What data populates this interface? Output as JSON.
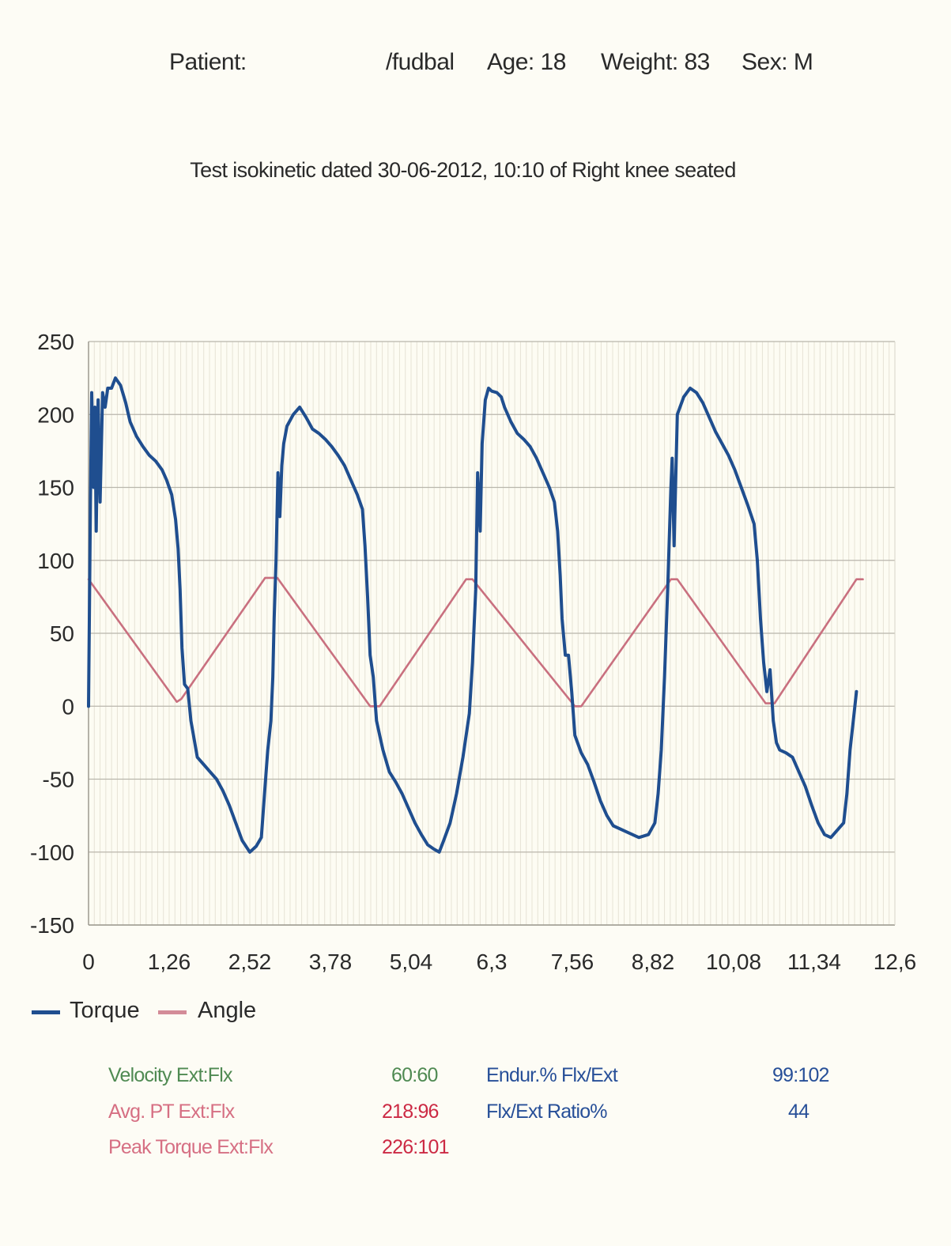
{
  "header": {
    "patient_label": "Patient:",
    "patient_name": "/fudbal",
    "age": "Age: 18",
    "weight": "Weight: 83",
    "sex": "Sex: M"
  },
  "test_title": "Test isokinetic dated 30-06-2012, 10:10 of Right knee seated",
  "chart_data": {
    "type": "line",
    "xlim": [
      0,
      12.6
    ],
    "ylim": [
      -150,
      250
    ],
    "x_tick_labels": [
      "0",
      "1,26",
      "2,52",
      "3,78",
      "5,04",
      "6,3",
      "7,56",
      "8,82",
      "10,08",
      "11,34",
      "12,6"
    ],
    "y_tick_labels": [
      "250",
      "200",
      "150",
      "100",
      "50",
      "0",
      "-50",
      "-100",
      "-150"
    ],
    "grid": true,
    "legend_position": "bottom-left",
    "series": [
      {
        "name": "Torque",
        "color": "#1f4e8f",
        "points": [
          [
            0,
            0
          ],
          [
            0.03,
            140
          ],
          [
            0.05,
            215
          ],
          [
            0.08,
            150
          ],
          [
            0.1,
            205
          ],
          [
            0.12,
            120
          ],
          [
            0.15,
            210
          ],
          [
            0.18,
            140
          ],
          [
            0.22,
            215
          ],
          [
            0.26,
            205
          ],
          [
            0.3,
            218
          ],
          [
            0.36,
            218
          ],
          [
            0.42,
            225
          ],
          [
            0.5,
            220
          ],
          [
            0.58,
            208
          ],
          [
            0.65,
            195
          ],
          [
            0.75,
            185
          ],
          [
            0.85,
            178
          ],
          [
            0.95,
            172
          ],
          [
            1.05,
            168
          ],
          [
            1.15,
            162
          ],
          [
            1.22,
            155
          ],
          [
            1.3,
            145
          ],
          [
            1.36,
            128
          ],
          [
            1.4,
            108
          ],
          [
            1.43,
            80
          ],
          [
            1.46,
            40
          ],
          [
            1.5,
            15
          ],
          [
            1.55,
            12
          ],
          [
            1.6,
            -10
          ],
          [
            1.7,
            -35
          ],
          [
            1.8,
            -40
          ],
          [
            1.9,
            -45
          ],
          [
            2.0,
            -50
          ],
          [
            2.1,
            -58
          ],
          [
            2.2,
            -68
          ],
          [
            2.3,
            -80
          ],
          [
            2.4,
            -92
          ],
          [
            2.52,
            -100
          ],
          [
            2.62,
            -96
          ],
          [
            2.7,
            -90
          ],
          [
            2.75,
            -60
          ],
          [
            2.8,
            -30
          ],
          [
            2.85,
            -10
          ],
          [
            2.88,
            20
          ],
          [
            2.9,
            60
          ],
          [
            2.93,
            100
          ],
          [
            2.96,
            160
          ],
          [
            2.99,
            130
          ],
          [
            3.02,
            165
          ],
          [
            3.05,
            180
          ],
          [
            3.1,
            192
          ],
          [
            3.2,
            200
          ],
          [
            3.3,
            205
          ],
          [
            3.4,
            198
          ],
          [
            3.5,
            190
          ],
          [
            3.6,
            187
          ],
          [
            3.7,
            183
          ],
          [
            3.8,
            178
          ],
          [
            3.9,
            172
          ],
          [
            4.0,
            165
          ],
          [
            4.1,
            155
          ],
          [
            4.2,
            145
          ],
          [
            4.28,
            135
          ],
          [
            4.32,
            110
          ],
          [
            4.36,
            75
          ],
          [
            4.4,
            35
          ],
          [
            4.45,
            20
          ],
          [
            4.5,
            -10
          ],
          [
            4.55,
            -20
          ],
          [
            4.6,
            -30
          ],
          [
            4.7,
            -45
          ],
          [
            4.8,
            -52
          ],
          [
            4.9,
            -60
          ],
          [
            5.0,
            -70
          ],
          [
            5.1,
            -80
          ],
          [
            5.2,
            -88
          ],
          [
            5.3,
            -95
          ],
          [
            5.4,
            -98
          ],
          [
            5.48,
            -100
          ],
          [
            5.55,
            -92
          ],
          [
            5.65,
            -80
          ],
          [
            5.75,
            -60
          ],
          [
            5.85,
            -35
          ],
          [
            5.95,
            -5
          ],
          [
            6.0,
            30
          ],
          [
            6.05,
            80
          ],
          [
            6.08,
            160
          ],
          [
            6.12,
            120
          ],
          [
            6.15,
            180
          ],
          [
            6.2,
            210
          ],
          [
            6.25,
            218
          ],
          [
            6.3,
            216
          ],
          [
            6.38,
            215
          ],
          [
            6.45,
            212
          ],
          [
            6.5,
            205
          ],
          [
            6.6,
            195
          ],
          [
            6.7,
            187
          ],
          [
            6.8,
            183
          ],
          [
            6.9,
            178
          ],
          [
            7.0,
            170
          ],
          [
            7.1,
            160
          ],
          [
            7.2,
            150
          ],
          [
            7.28,
            140
          ],
          [
            7.33,
            120
          ],
          [
            7.37,
            90
          ],
          [
            7.4,
            60
          ],
          [
            7.45,
            35
          ],
          [
            7.5,
            35
          ],
          [
            7.55,
            10
          ],
          [
            7.6,
            -20
          ],
          [
            7.7,
            -32
          ],
          [
            7.8,
            -40
          ],
          [
            7.9,
            -52
          ],
          [
            8.0,
            -65
          ],
          [
            8.1,
            -75
          ],
          [
            8.2,
            -82
          ],
          [
            8.4,
            -86
          ],
          [
            8.6,
            -90
          ],
          [
            8.75,
            -88
          ],
          [
            8.85,
            -80
          ],
          [
            8.9,
            -60
          ],
          [
            8.95,
            -30
          ],
          [
            9.0,
            20
          ],
          [
            9.05,
            80
          ],
          [
            9.1,
            150
          ],
          [
            9.12,
            170
          ],
          [
            9.15,
            110
          ],
          [
            9.2,
            200
          ],
          [
            9.3,
            212
          ],
          [
            9.4,
            218
          ],
          [
            9.5,
            215
          ],
          [
            9.6,
            208
          ],
          [
            9.7,
            198
          ],
          [
            9.8,
            188
          ],
          [
            9.9,
            180
          ],
          [
            10.0,
            172
          ],
          [
            10.1,
            162
          ],
          [
            10.2,
            150
          ],
          [
            10.3,
            138
          ],
          [
            10.4,
            125
          ],
          [
            10.45,
            100
          ],
          [
            10.5,
            60
          ],
          [
            10.55,
            30
          ],
          [
            10.6,
            10
          ],
          [
            10.65,
            25
          ],
          [
            10.7,
            -10
          ],
          [
            10.75,
            -25
          ],
          [
            10.8,
            -30
          ],
          [
            10.9,
            -32
          ],
          [
            11.0,
            -35
          ],
          [
            11.1,
            -45
          ],
          [
            11.2,
            -55
          ],
          [
            11.3,
            -68
          ],
          [
            11.4,
            -80
          ],
          [
            11.5,
            -88
          ],
          [
            11.6,
            -90
          ],
          [
            11.7,
            -85
          ],
          [
            11.8,
            -80
          ],
          [
            11.85,
            -60
          ],
          [
            11.9,
            -30
          ],
          [
            11.95,
            -10
          ],
          [
            12.0,
            10
          ]
        ]
      },
      {
        "name": "Angle",
        "color": "#c9707f",
        "points": [
          [
            0,
            87
          ],
          [
            1.38,
            3
          ],
          [
            1.45,
            5
          ],
          [
            2.76,
            88
          ],
          [
            2.95,
            88
          ],
          [
            4.4,
            0
          ],
          [
            4.55,
            0
          ],
          [
            5.9,
            87
          ],
          [
            6.0,
            87
          ],
          [
            7.6,
            0
          ],
          [
            7.7,
            0
          ],
          [
            9.1,
            87
          ],
          [
            9.2,
            87
          ],
          [
            10.58,
            2
          ],
          [
            10.72,
            2
          ],
          [
            12.0,
            87
          ],
          [
            12.1,
            87
          ]
        ]
      }
    ]
  },
  "stats": {
    "left": [
      {
        "label": "Velocity  Ext:Flx",
        "value": "60:60",
        "label_color": "#4f8a52",
        "value_color": "#4f8a52"
      },
      {
        "label": "Avg. PT Ext:Flx",
        "value": "218:96",
        "label_color": "#d66f83",
        "value_color": "#cc2a44"
      },
      {
        "label": "Peak Torque  Ext:Flx",
        "value": "226:101",
        "label_color": "#d66f83",
        "value_color": "#cc2a44"
      }
    ],
    "right": [
      {
        "label": "Endur.%  Flx/Ext",
        "value": "99:102"
      },
      {
        "label": "Flx/Ext Ratio%",
        "value": "44"
      }
    ]
  }
}
